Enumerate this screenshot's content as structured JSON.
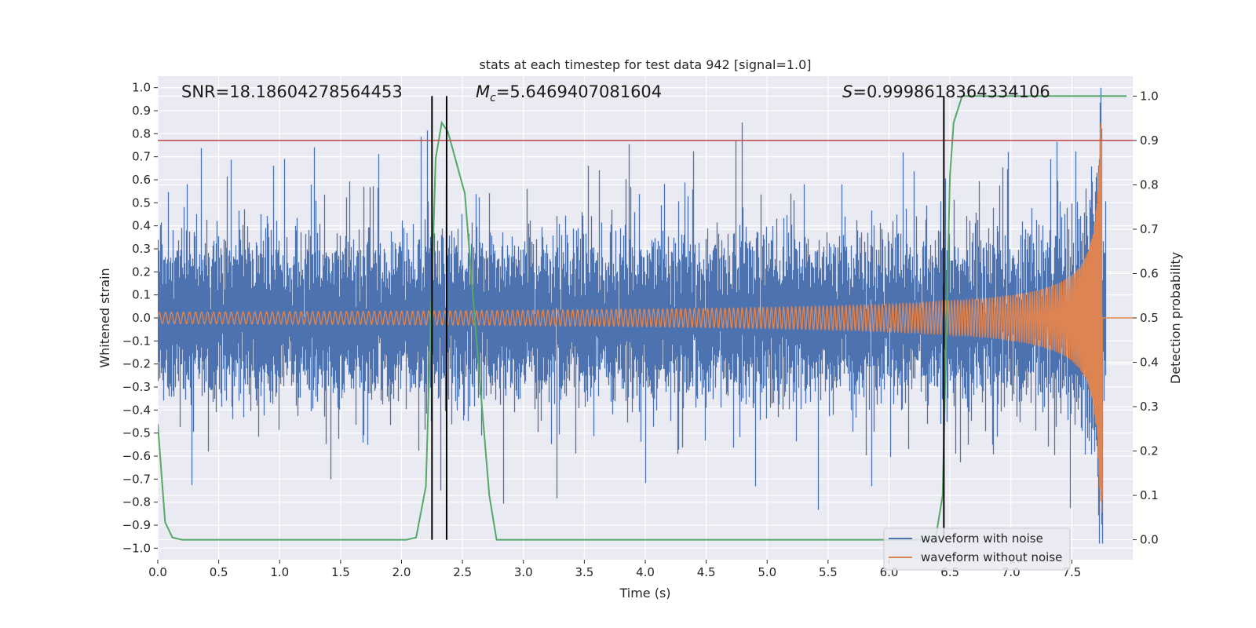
{
  "chart_data": {
    "type": "line",
    "title": "stats at each timestep for test data 942 [signal=1.0]",
    "xlabel": "Time (s)",
    "ylabel": "Whitened strain",
    "y2label": "Detection probability",
    "xlim": [
      0.0,
      8.0
    ],
    "ylim": [
      -1.05,
      1.05
    ],
    "y2lim": [
      -0.045,
      1.045
    ],
    "x_ticks": [
      "0.0",
      "0.5",
      "1.0",
      "1.5",
      "2.0",
      "2.5",
      "3.0",
      "3.5",
      "4.0",
      "4.5",
      "5.0",
      "5.5",
      "6.0",
      "6.5",
      "7.0",
      "7.5"
    ],
    "y_ticks": [
      "1.0",
      "0.9",
      "0.8",
      "0.7",
      "0.6",
      "0.5",
      "0.4",
      "0.3",
      "0.2",
      "0.1",
      "0.0",
      "−0.1",
      "−0.2",
      "−0.3",
      "−0.4",
      "−0.5",
      "−0.6",
      "−0.7",
      "−0.8",
      "−0.9",
      "−1.0"
    ],
    "y2_ticks": [
      "1.0",
      "0.9",
      "0.8",
      "0.7",
      "0.6",
      "0.5",
      "0.4",
      "0.3",
      "0.2",
      "0.1",
      "0.0"
    ],
    "grid": true,
    "legend_position": "lower-right",
    "annotations": {
      "snr": "SNR=18.18604278564453",
      "mc_symbol": "M",
      "mc_sub": "c",
      "mc_value": "=5.6469407081604",
      "s_symbol": "S",
      "s_value": "=0.9998618364334106"
    },
    "threshold_line": {
      "y2": 0.9,
      "color": "#c44e52"
    },
    "vertical_markers": [
      2.25,
      2.37,
      6.45
    ],
    "series": [
      {
        "name": "waveform with noise",
        "color": "#4c72b0",
        "noise_std": 0.15,
        "duration": 7.78
      },
      {
        "name": "waveform without noise",
        "color": "#dd8452",
        "merger_time": 7.75,
        "start_amplitude": 0.025,
        "peak_amplitude": 0.85,
        "start_freq_hz": 20
      },
      {
        "name": "detection probability",
        "color": "#55a868",
        "x": [
          0.0,
          0.06,
          0.12,
          0.2,
          1.0,
          1.8,
          2.04,
          2.12,
          2.2,
          2.28,
          2.33,
          2.38,
          2.45,
          2.52,
          2.6,
          2.72,
          2.78,
          3.0,
          5.0,
          6.0,
          6.38,
          6.44,
          6.5,
          6.53,
          6.6,
          7.95
        ],
        "y": [
          0.26,
          0.04,
          0.005,
          0.0,
          0.0,
          0.0,
          0.0,
          0.005,
          0.12,
          0.86,
          0.94,
          0.92,
          0.85,
          0.78,
          0.5,
          0.1,
          0.0,
          0.0,
          0.0,
          0.0,
          0.0,
          0.1,
          0.82,
          0.94,
          1.0,
          1.0
        ]
      }
    ]
  }
}
